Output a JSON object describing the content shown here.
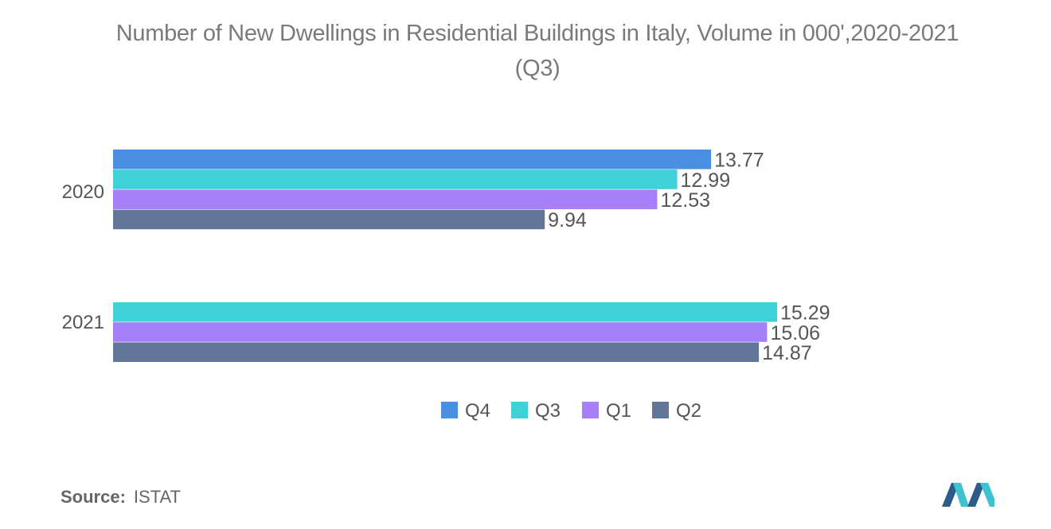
{
  "chart_data": {
    "type": "bar",
    "orientation": "horizontal",
    "title": "Number of New Dwellings in Residential Buildings in Italy, Volume in 000',2020-2021 (Q3)",
    "title_lines": [
      "Number of New Dwellings in Residential Buildings in Italy, Volume in 000',2020-2021",
      "(Q3)"
    ],
    "categories": [
      "2020",
      "2021"
    ],
    "series": [
      {
        "name": "Q4",
        "color": "#4a90e2",
        "values": [
          13.77,
          null
        ],
        "labels": [
          "13.77",
          ""
        ]
      },
      {
        "name": "Q3",
        "color": "#3ed2d8",
        "values": [
          12.99,
          15.29
        ],
        "labels": [
          "12.99",
          "15.29"
        ]
      },
      {
        "name": "Q1",
        "color": "#a77ffa",
        "values": [
          12.53,
          15.06
        ],
        "labels": [
          "12.53",
          "15.06"
        ]
      },
      {
        "name": "Q2",
        "color": "#627697",
        "values": [
          9.94,
          14.87
        ],
        "labels": [
          "9.94",
          "14.87"
        ]
      }
    ],
    "xlim": [
      0,
      15.29
    ],
    "grid": false,
    "legend_position": "bottom"
  },
  "source": {
    "label": "Source:",
    "value": "ISTAT"
  },
  "logo": {
    "icon": "mordor-intelligence-logo",
    "colors": [
      "#2c5d8a",
      "#3ec2cf"
    ]
  }
}
